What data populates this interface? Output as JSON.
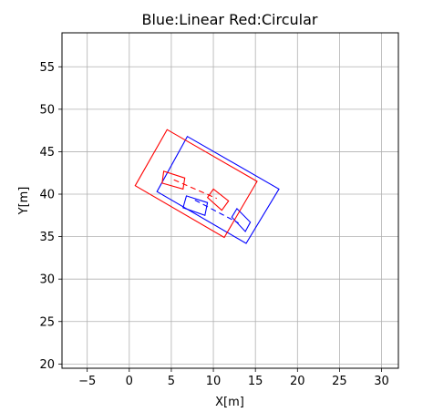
{
  "chart_data": {
    "type": "line",
    "title": "Blue:Linear Red:Circular",
    "xlabel": "X[m]",
    "ylabel": "Y[m]",
    "xlim": [
      -8,
      32
    ],
    "ylim": [
      19.5,
      59
    ],
    "grid": true,
    "x_ticks": [
      -5,
      0,
      5,
      10,
      15,
      20,
      25,
      30
    ],
    "y_ticks": [
      20,
      25,
      30,
      35,
      40,
      45,
      50,
      55
    ],
    "series": [
      {
        "color": "#0000ff",
        "closed": true,
        "x": [
          3.3,
          6.9,
          17.8,
          13.9
        ],
        "y": [
          40.3,
          46.8,
          40.6,
          34.2
        ]
      },
      {
        "color": "#0000ff",
        "closed": true,
        "x": [
          6.4,
          6.8,
          9.3,
          9.0
        ],
        "y": [
          38.4,
          39.8,
          39.0,
          37.5
        ]
      },
      {
        "color": "#0000ff",
        "closed": true,
        "x": [
          12.2,
          12.8,
          14.4,
          13.8
        ],
        "y": [
          37.3,
          38.3,
          36.7,
          35.6
        ]
      },
      {
        "color": "#ff0000",
        "closed": true,
        "x": [
          0.7,
          4.5,
          15.2,
          11.3
        ],
        "y": [
          41.0,
          47.6,
          41.5,
          34.9
        ]
      },
      {
        "color": "#ff0000",
        "closed": true,
        "x": [
          3.9,
          4.1,
          6.6,
          6.4
        ],
        "y": [
          41.3,
          42.7,
          41.9,
          40.6
        ]
      },
      {
        "color": "#ff0000",
        "closed": true,
        "x": [
          9.3,
          10.0,
          11.8,
          11.0
        ],
        "y": [
          39.6,
          40.6,
          39.2,
          38.1
        ]
      },
      {
        "color": "#0000ff",
        "dashed": true,
        "closed": false,
        "x": [
          7.8,
          13.0
        ],
        "y": [
          39.3,
          36.6
        ]
      },
      {
        "color": "#ff0000",
        "dashed": true,
        "closed": false,
        "x": [
          5.3,
          10.4
        ],
        "y": [
          41.7,
          39.5
        ]
      }
    ]
  }
}
